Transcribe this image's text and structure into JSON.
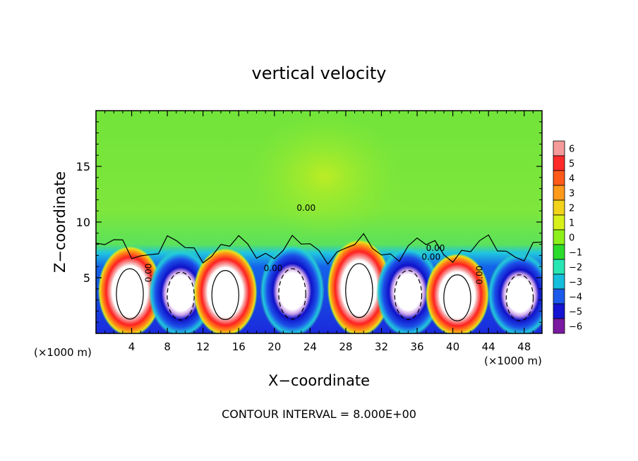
{
  "chart_data": {
    "type": "heatmap",
    "title": "vertical velocity",
    "xlabel": "X−coordinate",
    "ylabel": "Z−coordinate",
    "x_unit_left": "(×1000 m)",
    "x_unit_right": "(×1000 m)",
    "footer": "CONTOUR INTERVAL = 8.000E+00",
    "xlim": [
      0,
      50
    ],
    "ylim": [
      0,
      20
    ],
    "x_ticks": [
      4,
      8,
      12,
      16,
      20,
      24,
      28,
      32,
      36,
      40,
      44,
      48
    ],
    "y_ticks": [
      5,
      10,
      15
    ],
    "colorbar": {
      "levels": [
        6,
        5,
        4,
        3,
        2,
        1,
        0,
        -1,
        -2,
        -3,
        -4,
        -5,
        -6
      ],
      "colors": [
        "#f59a9a",
        "#ff2a2a",
        "#ff5a1a",
        "#ff9a1a",
        "#f2d21a",
        "#d8f01a",
        "#8ef01a",
        "#2cdc2c",
        "#28e6b4",
        "#14bedc",
        "#1c5aeb",
        "#1414d2",
        "#7a1aa0"
      ]
    },
    "contour_labels": [
      "0.00",
      "0.00",
      "0.00",
      "0.00",
      "0.00",
      "0.00"
    ],
    "cells": [
      {
        "x": 3.8,
        "zmax": 7.2,
        "sign": "up",
        "core": "strong"
      },
      {
        "x": 9.5,
        "zmax": 6.8,
        "sign": "down",
        "core": "strong"
      },
      {
        "x": 14.5,
        "zmax": 7.0,
        "sign": "up",
        "core": "strong"
      },
      {
        "x": 22.0,
        "zmax": 7.2,
        "sign": "down",
        "core": "strong"
      },
      {
        "x": 29.5,
        "zmax": 7.8,
        "sign": "up",
        "core": "strong"
      },
      {
        "x": 35.0,
        "zmax": 7.0,
        "sign": "down",
        "core": "moderate"
      },
      {
        "x": 40.5,
        "zmax": 6.5,
        "sign": "up",
        "core": "strong"
      },
      {
        "x": 47.5,
        "zmax": 6.5,
        "sign": "down",
        "core": "strong"
      }
    ]
  }
}
